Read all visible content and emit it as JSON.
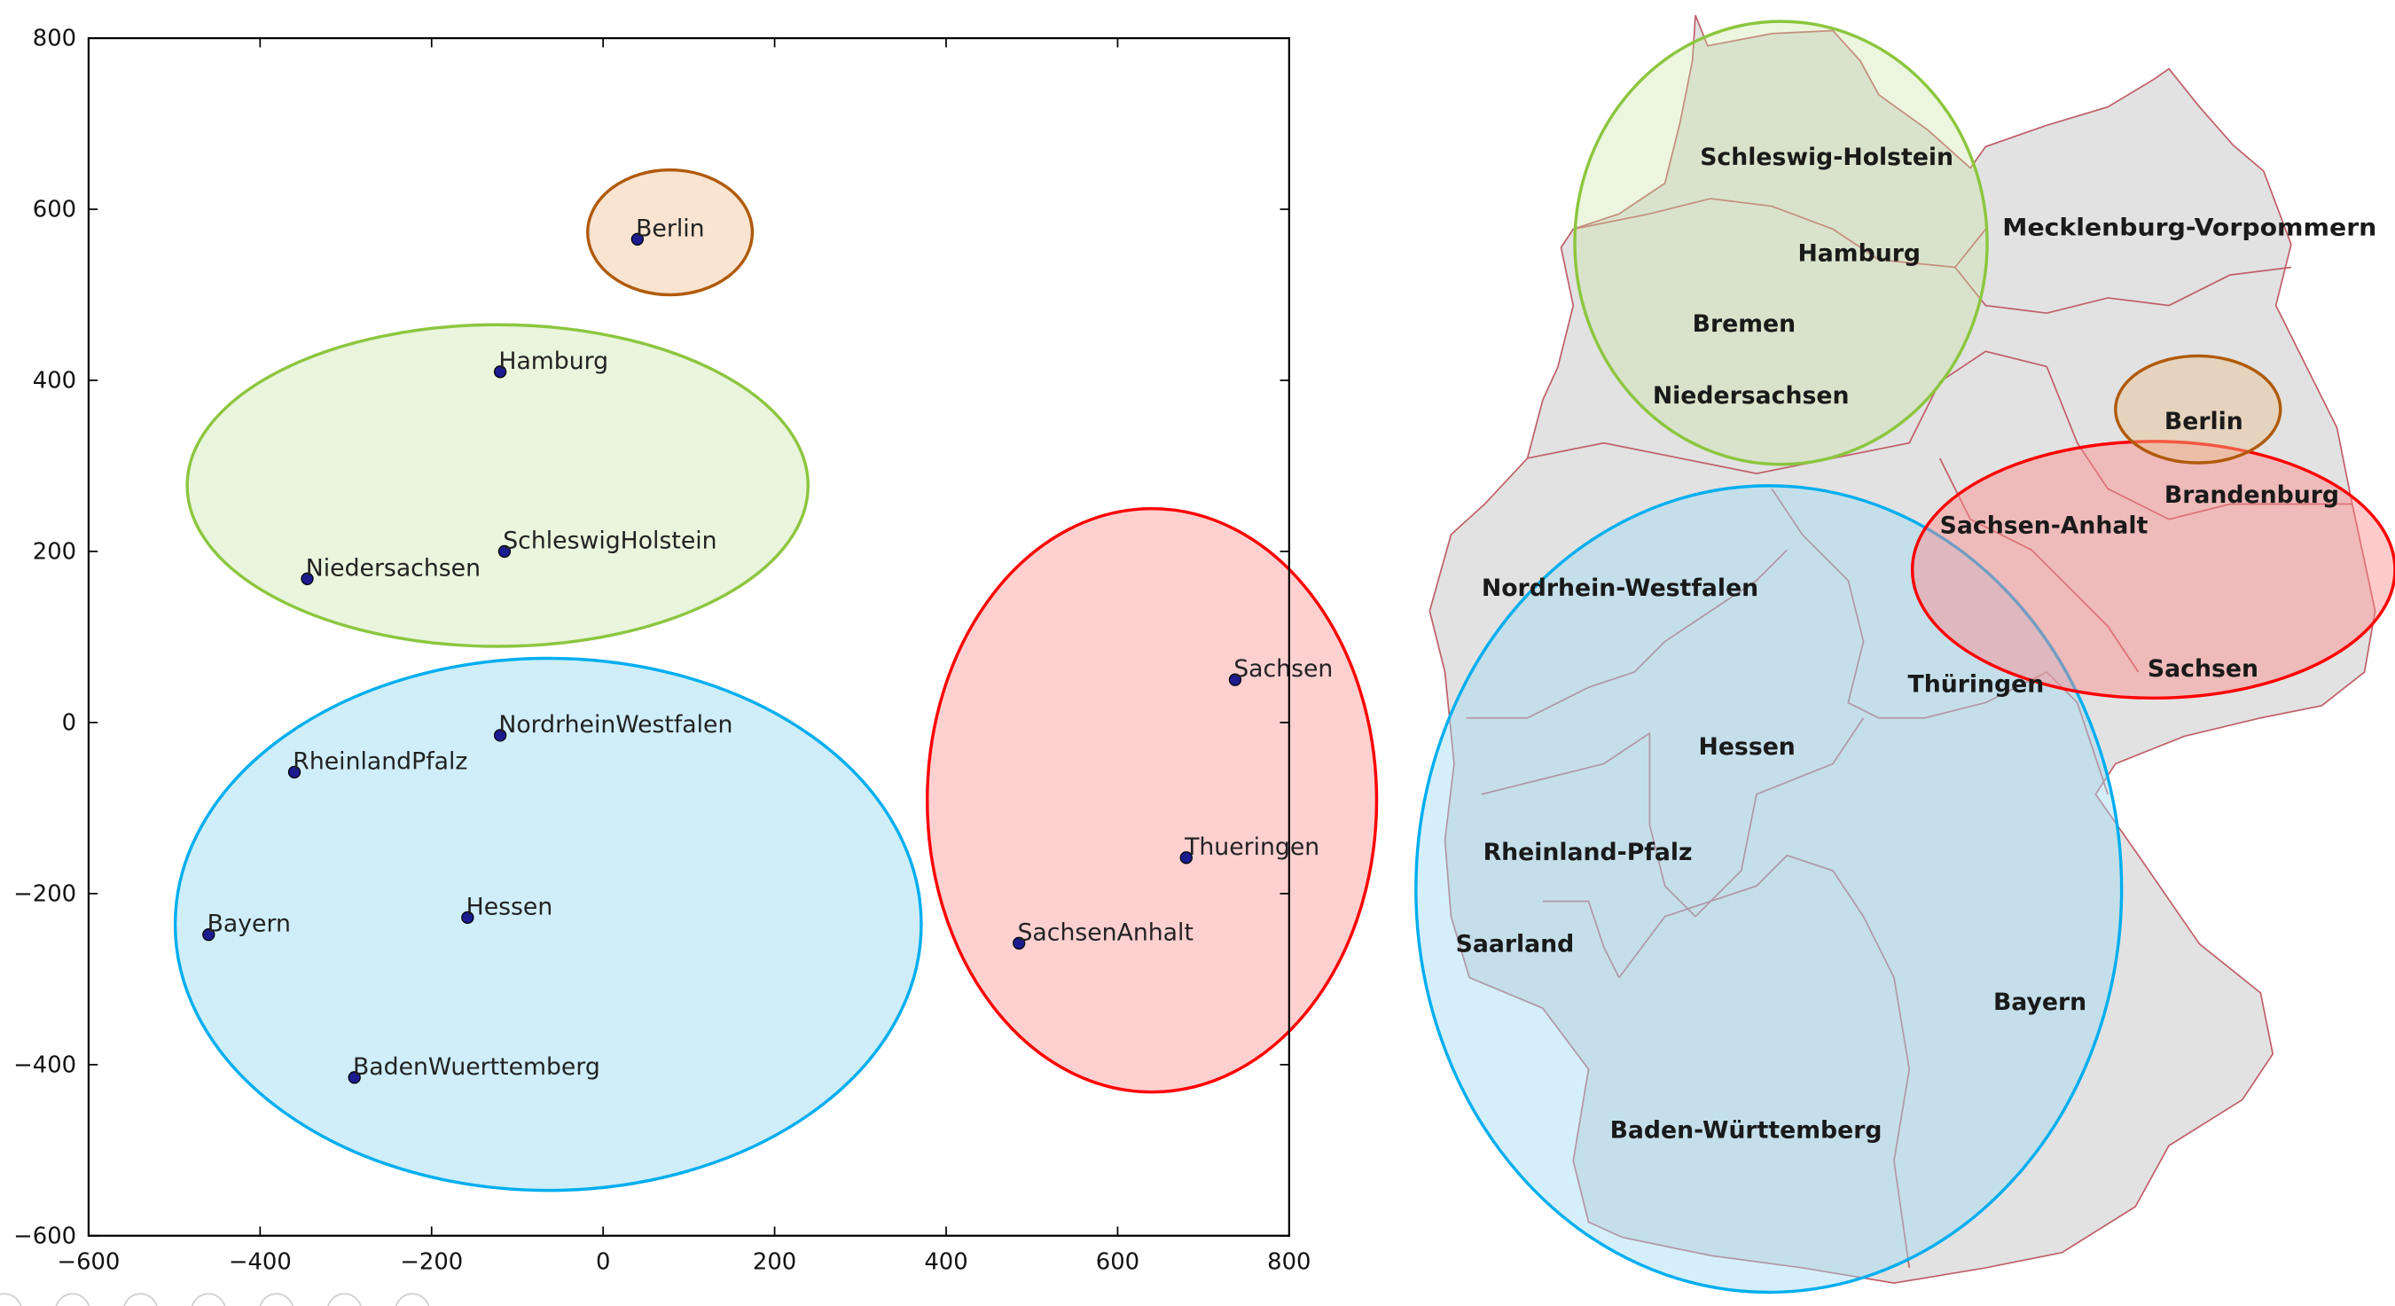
{
  "chart_data": {
    "type": "scatter",
    "title": "",
    "xlabel": "",
    "ylabel": "",
    "xlim": [
      -600,
      800
    ],
    "ylim": [
      -600,
      800
    ],
    "xticks": [
      -600,
      -400,
      -200,
      0,
      200,
      400,
      600,
      800
    ],
    "yticks": [
      -600,
      -400,
      -200,
      0,
      200,
      400,
      600,
      800
    ],
    "grid": false,
    "points": [
      {
        "label": "Berlin",
        "x": 40,
        "y": 565
      },
      {
        "label": "Hamburg",
        "x": -120,
        "y": 410
      },
      {
        "label": "SchleswigHolstein",
        "x": -115,
        "y": 200
      },
      {
        "label": "Niedersachsen",
        "x": -345,
        "y": 168
      },
      {
        "label": "NordrheinWestfalen",
        "x": -120,
        "y": -15
      },
      {
        "label": "RheinlandPfalz",
        "x": -360,
        "y": -58
      },
      {
        "label": "Bayern",
        "x": -460,
        "y": -248
      },
      {
        "label": "Hessen",
        "x": -158,
        "y": -228
      },
      {
        "label": "BadenWuerttemberg",
        "x": -290,
        "y": -415
      },
      {
        "label": "Sachsen",
        "x": 737,
        "y": 50
      },
      {
        "label": "Thueringen",
        "x": 680,
        "y": -158
      },
      {
        "label": "SachsenAnhalt",
        "x": 485,
        "y": -258
      }
    ],
    "point_color": "#1c1c8f",
    "clusters": [
      {
        "members": [
          "Berlin"
        ],
        "cx": 78,
        "cy": 573,
        "rx": 96,
        "ry": 73,
        "stroke": "#b05a0a",
        "fill": "#f8e4d0"
      },
      {
        "members": [
          "Hamburg",
          "SchleswigHolstein",
          "Niedersachsen"
        ],
        "cx": -123,
        "cy": 277,
        "rx": 362,
        "ry": 188,
        "stroke": "#8cc63f",
        "fill": "#e9f5dc"
      },
      {
        "members": [
          "NordrheinWestfalen",
          "RheinlandPfalz",
          "Bayern",
          "Hessen",
          "BadenWuerttemberg"
        ],
        "cx": -64,
        "cy": -236,
        "rx": 435,
        "ry": 311,
        "stroke": "#00aeef",
        "fill": "#cfeefa"
      },
      {
        "members": [
          "Sachsen",
          "Thueringen",
          "SachsenAnhalt"
        ],
        "cx": 640,
        "cy": -91,
        "rx": 262,
        "ry": 341,
        "stroke": "#ff0000",
        "fill": "#ffd0d0"
      }
    ]
  },
  "map": {
    "fill": "#e2e2e2",
    "border_color": "#c0606a",
    "labels": [
      "Schleswig-Holstein",
      "Hamburg",
      "Mecklenburg-Vorpommern",
      "Bremen",
      "Niedersachsen",
      "Berlin",
      "Brandenburg",
      "Sachsen-Anhalt",
      "Nordrhein-Westfalen",
      "Thüringen",
      "Sachsen",
      "Hessen",
      "Rheinland-Pfalz",
      "Saarland",
      "Bayern",
      "Baden-Württemberg"
    ],
    "group_colors": {
      "north": {
        "stroke": "#8cc63f",
        "fill": "#c8e6a0"
      },
      "berlin": {
        "stroke": "#b05a0a",
        "fill": "#e8c090"
      },
      "east": {
        "stroke": "#ff0000",
        "fill": "#ff8a8a"
      },
      "west_south": {
        "stroke": "#00aeef",
        "fill": "#9fdcf4"
      }
    }
  },
  "toolbar": {
    "icons": [
      "back-icon",
      "forward-icon",
      "pen-icon",
      "layout-icon",
      "zoom-icon",
      "screen-icon",
      "more-icon"
    ]
  }
}
